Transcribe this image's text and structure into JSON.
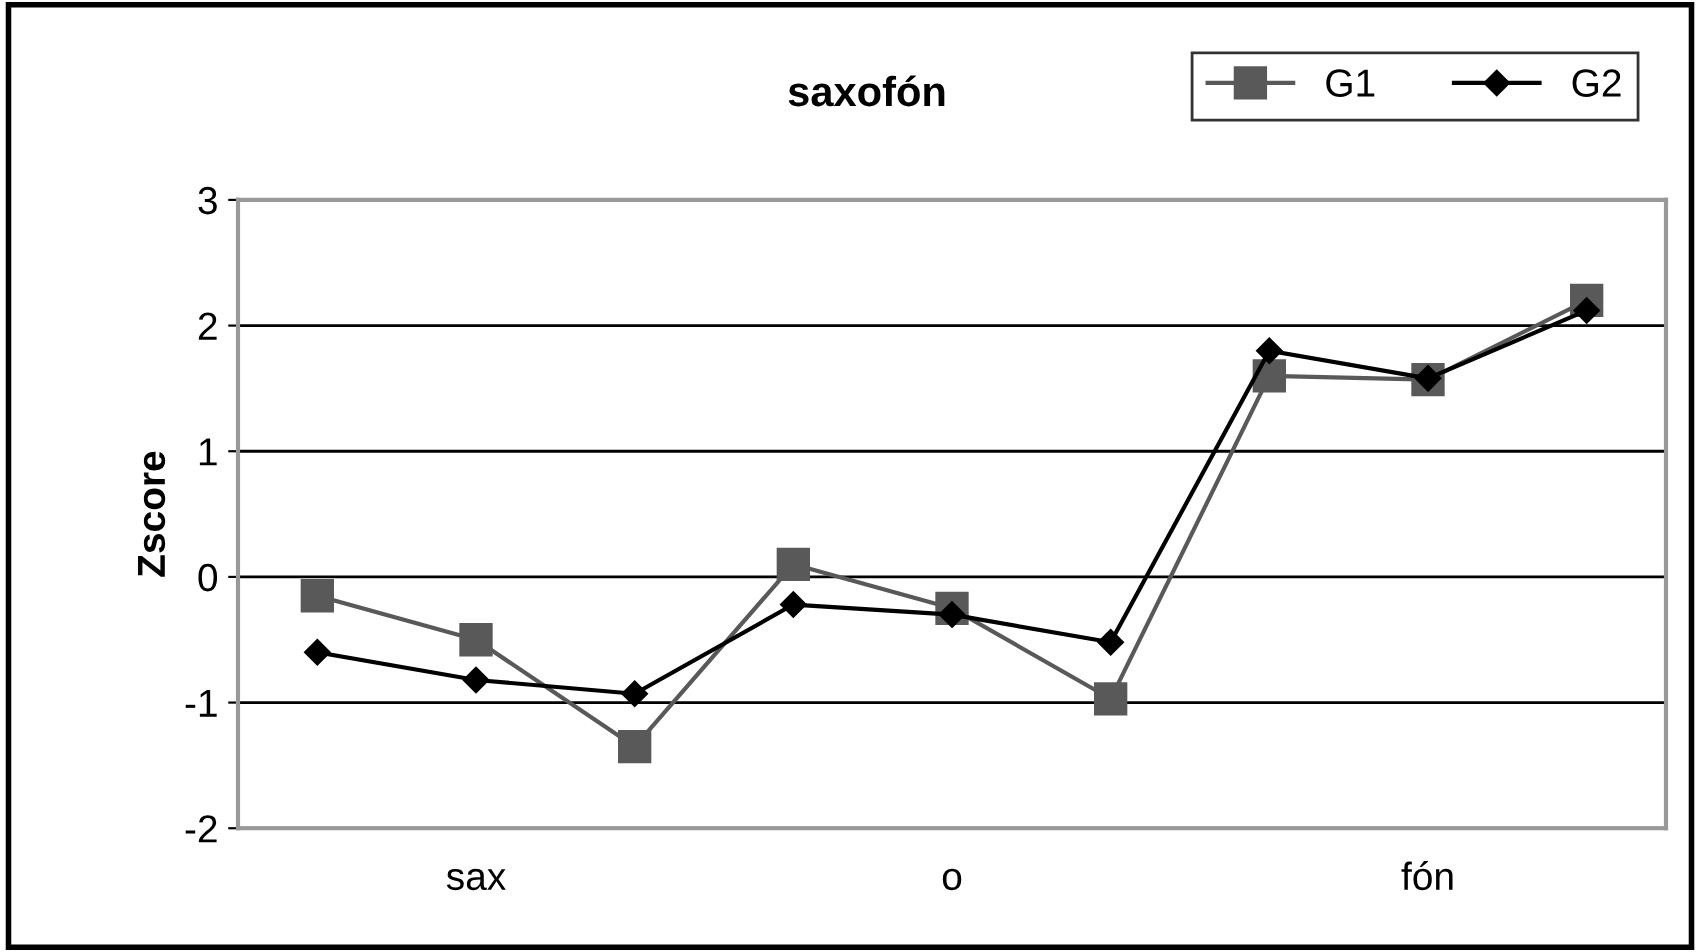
{
  "chart_data": {
    "type": "line",
    "title": "saxofón",
    "ylabel": "Zscore",
    "categories": [
      null,
      "sax",
      null,
      null,
      "o",
      null,
      null,
      "fón",
      null
    ],
    "series": [
      {
        "name": "G1",
        "color": "#595959",
        "marker": "square",
        "values": [
          -0.15,
          -0.5,
          -1.35,
          0.1,
          -0.25,
          -0.97,
          1.6,
          1.57,
          2.2
        ]
      },
      {
        "name": "G2",
        "color": "#000000",
        "marker": "diamond",
        "values": [
          -0.6,
          -0.82,
          -0.93,
          -0.22,
          -0.3,
          -0.52,
          1.8,
          1.58,
          2.12
        ]
      }
    ],
    "ylim": [
      -2,
      3
    ],
    "yticks": [
      -2,
      -1,
      0,
      1,
      2,
      3
    ],
    "grid": "y",
    "legend": "top right",
    "line_style": "solid"
  }
}
